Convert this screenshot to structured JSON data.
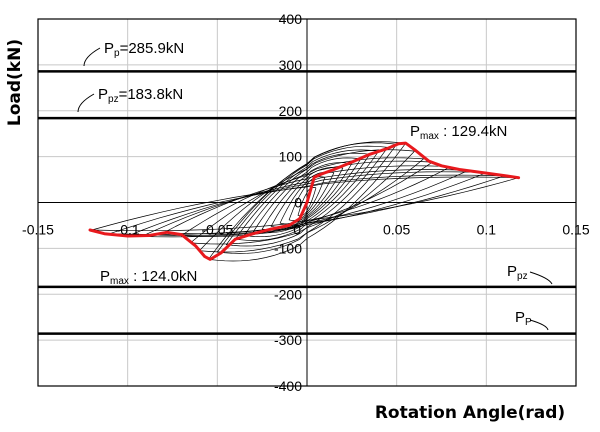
{
  "chart_data": {
    "type": "line",
    "title": "",
    "xlabel": "Rotation Angle(rad)",
    "ylabel": "Load(kN)",
    "xlim": [
      -0.15,
      0.15
    ],
    "ylim": [
      -400,
      400
    ],
    "x_ticks": [
      "-0.15",
      "-0.1",
      "-0.05",
      "0",
      "0.05",
      "0.1",
      "0.15"
    ],
    "y_ticks": [
      "400",
      "300",
      "200",
      "100",
      "0",
      "-100",
      "-200",
      "-300",
      "-400"
    ],
    "grid": true,
    "legend": "none",
    "reference_lines": [
      {
        "label": "Pp",
        "prefix": "P",
        "sub": "p",
        "value_text": "=285.9kN",
        "y": 285.9
      },
      {
        "label": "Ppz",
        "prefix": "P",
        "sub": "pz",
        "value_text": "=183.8kN",
        "y": 183.8
      },
      {
        "label": "Ppz",
        "prefix": "P",
        "sub": "pz",
        "value_text": "",
        "y": -183.8
      },
      {
        "label": "Pp",
        "prefix": "P",
        "sub": "P",
        "value_text": "",
        "y": -285.9
      }
    ],
    "annotations": [
      {
        "prefix": "P",
        "sub": "max",
        "text": " : 129.4kN",
        "x": 0.052,
        "y": 129.4
      },
      {
        "prefix": "P",
        "sub": "max",
        "text": " : 124.0kN",
        "x": -0.055,
        "y": -124.0
      }
    ],
    "series": [
      {
        "role": "envelope",
        "color": "#e8191d",
        "x": [
          -0.121,
          -0.113,
          -0.1,
          -0.088,
          -0.078,
          -0.07,
          -0.062,
          -0.057,
          -0.054,
          -0.048,
          -0.04,
          -0.03,
          -0.02,
          -0.01,
          -0.004,
          0.0,
          0.004,
          0.008,
          0.015,
          0.025,
          0.035,
          0.045,
          0.051,
          0.055,
          0.06,
          0.068,
          0.075,
          0.085,
          0.1,
          0.111,
          0.118
        ],
        "y": [
          -60,
          -68,
          -73,
          -72,
          -65,
          -70,
          -95,
          -118,
          -124,
          -110,
          -80,
          -68,
          -58,
          -50,
          -35,
          0,
          55,
          62,
          72,
          88,
          105,
          118,
          128,
          129.4,
          115,
          90,
          80,
          72,
          64,
          58,
          54
        ]
      },
      {
        "role": "hysteresis",
        "color": "#000000",
        "loops": [
          {
            "dmin": -0.005,
            "fmin": -28,
            "dmax": 0.005,
            "fmax": 32
          },
          {
            "dmin": -0.01,
            "fmin": -38,
            "dmax": 0.01,
            "fmax": 55
          },
          {
            "dmin": -0.015,
            "fmin": -45,
            "dmax": 0.015,
            "fmax": 65
          },
          {
            "dmin": -0.02,
            "fmin": -52,
            "dmax": 0.02,
            "fmax": 75
          },
          {
            "dmin": -0.025,
            "fmin": -58,
            "dmax": 0.025,
            "fmax": 85
          },
          {
            "dmin": -0.03,
            "fmin": -64,
            "dmax": 0.03,
            "fmax": 95
          },
          {
            "dmin": -0.035,
            "fmin": -72,
            "dmax": 0.035,
            "fmax": 105
          },
          {
            "dmin": -0.04,
            "fmin": -80,
            "dmax": 0.04,
            "fmax": 112
          },
          {
            "dmin": -0.045,
            "fmin": -92,
            "dmax": 0.045,
            "fmax": 120
          },
          {
            "dmin": -0.05,
            "fmin": -108,
            "dmax": 0.05,
            "fmax": 127
          },
          {
            "dmin": -0.055,
            "fmin": -124,
            "dmax": 0.055,
            "fmax": 129
          },
          {
            "dmin": -0.06,
            "fmin": -105,
            "dmax": 0.06,
            "fmax": 112
          },
          {
            "dmin": -0.065,
            "fmin": -88,
            "dmax": 0.065,
            "fmax": 95
          },
          {
            "dmin": -0.07,
            "fmin": -72,
            "dmax": 0.07,
            "fmax": 88
          },
          {
            "dmin": -0.08,
            "fmin": -66,
            "dmax": 0.08,
            "fmax": 78
          },
          {
            "dmin": -0.09,
            "fmin": -70,
            "dmax": 0.09,
            "fmax": 70
          },
          {
            "dmin": -0.1,
            "fmin": -73,
            "dmax": 0.1,
            "fmax": 65
          },
          {
            "dmin": -0.11,
            "fmin": -68,
            "dmax": 0.11,
            "fmax": 58
          },
          {
            "dmin": -0.12,
            "fmin": -60,
            "dmax": 0.118,
            "fmax": 54
          }
        ]
      }
    ]
  }
}
